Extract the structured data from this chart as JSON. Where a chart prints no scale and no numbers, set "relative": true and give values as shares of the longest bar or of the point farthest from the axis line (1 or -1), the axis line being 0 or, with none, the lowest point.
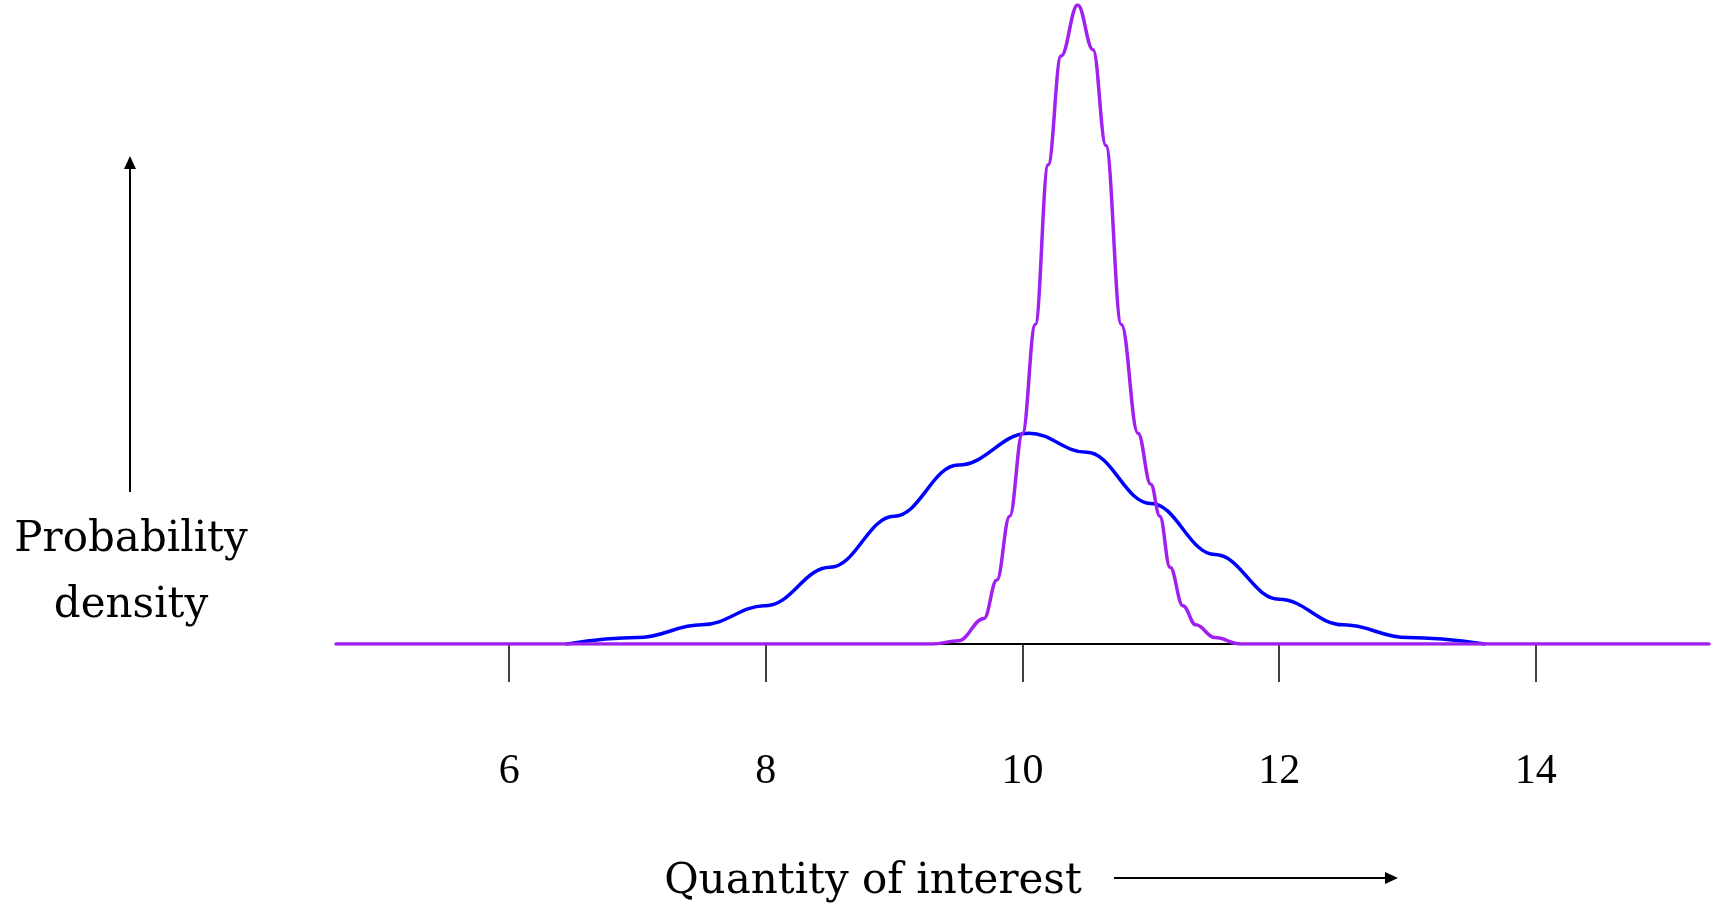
{
  "chart_data": {
    "type": "line",
    "relative": true,
    "xlabel": "Quantity of interest",
    "ylabel": "Probability density",
    "xlim": [
      4.65,
      15.35
    ],
    "xticks": [
      6,
      8,
      10,
      12,
      14
    ],
    "grid": false,
    "marker": "none",
    "line_style": "solid",
    "series": [
      {
        "color": "#0000ff",
        "x": [
          6.45,
          7,
          7.5,
          8,
          8.5,
          9,
          9.5,
          10.05,
          10.5,
          11,
          11.5,
          12,
          12.5,
          13,
          13.6
        ],
        "values": [
          0,
          0.01,
          0.03,
          0.06,
          0.12,
          0.2,
          0.28,
          0.33,
          0.3,
          0.22,
          0.14,
          0.07,
          0.03,
          0.01,
          0
        ]
      },
      {
        "color": "#a020f0",
        "x": [
          4.65,
          9.3,
          9.5,
          9.7,
          9.8,
          9.9,
          10,
          10.1,
          10.2,
          10.3,
          10.43,
          10.55,
          10.65,
          10.77,
          10.9,
          11,
          11.07,
          11.15,
          11.25,
          11.35,
          11.5,
          11.7,
          15.35
        ],
        "values": [
          0,
          0,
          0.005,
          0.04,
          0.1,
          0.2,
          0.33,
          0.5,
          0.75,
          0.92,
          1,
          0.93,
          0.78,
          0.5,
          0.33,
          0.25,
          0.2,
          0.12,
          0.06,
          0.03,
          0.01,
          0,
          0
        ]
      }
    ]
  }
}
